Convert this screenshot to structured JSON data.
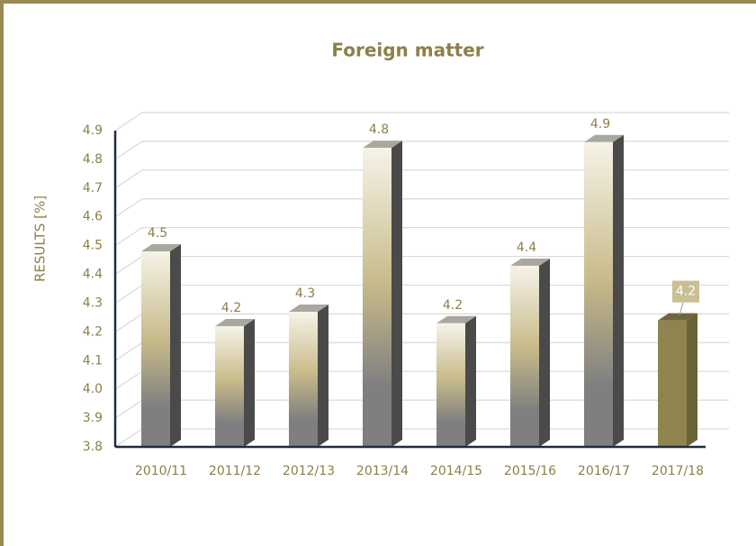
{
  "chart_data": {
    "type": "bar3d",
    "title": "Foreign matter",
    "y_label": "RESULTS [%]",
    "categories": [
      "2010/11",
      "2011/12",
      "2012/13",
      "2013/14",
      "2014/15",
      "2015/16",
      "2016/17",
      "2017/18"
    ],
    "values": [
      4.48,
      4.22,
      4.27,
      4.84,
      4.23,
      4.43,
      4.86,
      4.24
    ],
    "value_labels": [
      "4.5",
      "4.2",
      "4.3",
      "4.8",
      "4.2",
      "4.4",
      "4.9",
      "4.2"
    ],
    "colors": [
      [
        "#f6f3e8",
        "#c8bb8a",
        "#7f7f7f"
      ],
      [
        "#f6f3e8",
        "#c8bb8a",
        "#7f7f7f"
      ],
      [
        "#f6f3e8",
        "#c8bb8a",
        "#7f7f7f"
      ],
      [
        "#f6f3e8",
        "#c8bb8a",
        "#7f7f7f"
      ],
      [
        "#f6f3e8",
        "#c8bb8a",
        "#7f7f7f"
      ],
      [
        "#f6f3e8",
        "#c8bb8a",
        "#7f7f7f"
      ],
      [
        "#f6f3e8",
        "#c8bb8a",
        "#7f7f7f"
      ],
      [
        "#8f8450",
        "#8f8450",
        "#8f8450"
      ]
    ],
    "ylim": [
      3.8,
      4.9
    ],
    "yticks": [
      3.8,
      3.9,
      {
        "value": 4,
        "label": "4.0"
      },
      4.1,
      4.2,
      4.3,
      4.4,
      4.5,
      4.6,
      4.7,
      4.8,
      4.9
    ],
    "grid": true
  }
}
